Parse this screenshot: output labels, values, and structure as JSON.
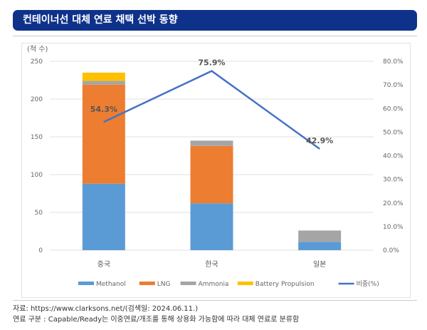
{
  "title": "컨테이너선 대체 연료 채택 선박 동향",
  "chart_data": {
    "type": "bar",
    "stacked": true,
    "categories": [
      "중국",
      "한국",
      "일본"
    ],
    "series": [
      {
        "name": "Methanol",
        "color": "#5b9bd5",
        "values": [
          88,
          62,
          11
        ]
      },
      {
        "name": "LNG",
        "color": "#ed7d31",
        "values": [
          131,
          76,
          0
        ]
      },
      {
        "name": "Ammonia",
        "color": "#a5a5a5",
        "values": [
          5,
          7,
          15
        ]
      },
      {
        "name": "Battery Propulsion",
        "color": "#ffc000",
        "values": [
          11,
          0,
          0
        ]
      }
    ],
    "line": {
      "name": "비중(%)",
      "color": "#4472c4",
      "values": [
        54.3,
        75.9,
        42.9
      ],
      "labels": [
        "54.3%",
        "75.9%",
        "42.9%"
      ]
    },
    "ylabel": "(척 수)",
    "ylim": [
      0,
      250
    ],
    "yticks": [
      "0",
      "50",
      "100",
      "150",
      "200",
      "250"
    ],
    "y2lim": [
      0,
      80
    ],
    "y2ticks": [
      "0.0%",
      "10.0%",
      "20.0%",
      "30.0%",
      "40.0%",
      "50.0%",
      "60.0%",
      "70.0%",
      "80.0%"
    ],
    "legend": "bottom"
  },
  "notes": [
    "자료: https://www.clarksons.net/(검색일: 2024.06.11.)",
    "연료 구분 : Capable/Ready는 이중연료/개조를 통해 상용화 가능함에 따라 대체 연료로 분류함"
  ]
}
